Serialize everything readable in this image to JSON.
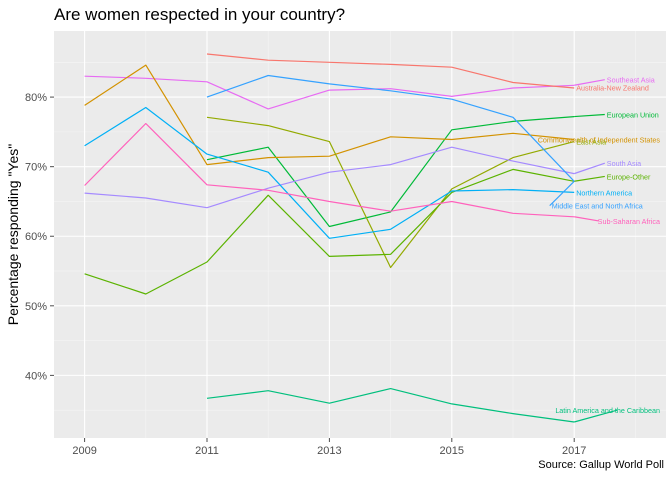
{
  "chart": {
    "title": "Are women respected in your country?",
    "caption": "Source: Gallup World Poll"
  },
  "chart_data": {
    "type": "line",
    "title": "Are women respected in your country?",
    "xlabel": "",
    "ylabel": "Percentage responding \"Yes\"",
    "xlim": [
      2008.5,
      2018.5
    ],
    "ylim": [
      31.0,
      89.5
    ],
    "x_ticks": [
      2009,
      2011,
      2013,
      2015,
      2017
    ],
    "y_ticks": [
      40,
      50,
      60,
      70,
      80
    ],
    "y_tick_labels": [
      "40%",
      "50%",
      "60%",
      "70%",
      "80%"
    ],
    "grid": true,
    "legend": "direct-labels-right",
    "series": [
      {
        "name": "Southeast Asia",
        "color": "#E76BF3",
        "x": [
          2009,
          2010,
          2011,
          2012,
          2013,
          2014,
          2015,
          2016,
          2017
        ],
        "values": [
          83.0,
          82.7,
          82.2,
          78.3,
          81.0,
          81.2,
          80.1,
          81.3,
          81.7
        ],
        "label_end": [
          2017.5,
          82.5
        ]
      },
      {
        "name": "Australia-New Zealand",
        "color": "#F8766D",
        "x": [
          2011,
          2012,
          2013,
          2014,
          2015,
          2016,
          2017
        ],
        "values": [
          86.2,
          85.3,
          85.0,
          84.7,
          84.3,
          82.1,
          81.3
        ],
        "label_end": [
          2017,
          81.4
        ]
      },
      {
        "name": "European Union",
        "color": "#00BA38",
        "x": [
          2011,
          2012,
          2013,
          2014,
          2015,
          2016,
          2017
        ],
        "values": [
          71.0,
          72.8,
          61.4,
          63.5,
          75.3,
          76.5,
          77.2
        ],
        "label_end": [
          2017.5,
          77.5
        ]
      },
      {
        "name": "Commonwealth of Independent States",
        "color": "#D39200",
        "x": [
          2009,
          2010,
          2011,
          2012,
          2013,
          2014,
          2015,
          2016,
          2017
        ],
        "values": [
          78.8,
          84.6,
          70.3,
          71.3,
          71.5,
          74.3,
          73.9,
          74.8,
          73.9
        ],
        "label_end": [
          2017,
          73.9
        ]
      },
      {
        "name": "East Asia",
        "color": "#93AA00",
        "x": [
          2011,
          2012,
          2013,
          2014,
          2015,
          2016,
          2017
        ],
        "values": [
          77.1,
          75.9,
          73.6,
          55.5,
          66.8,
          71.3,
          73.6
        ],
        "label_end": [
          2017,
          73.6
        ]
      },
      {
        "name": "South Asia",
        "color": "#A58AFF",
        "x": [
          2009,
          2010,
          2011,
          2012,
          2013,
          2014,
          2015,
          2016,
          2017
        ],
        "values": [
          66.2,
          65.5,
          64.1,
          66.9,
          69.2,
          70.3,
          72.8,
          70.8,
          69.0
        ],
        "label_end": [
          2017.5,
          70.5
        ]
      },
      {
        "name": "Europe-Other",
        "color": "#5BB300",
        "x": [
          2009,
          2010,
          2011,
          2012,
          2013,
          2014,
          2015,
          2016,
          2017
        ],
        "values": [
          54.6,
          51.7,
          56.3,
          65.9,
          57.1,
          57.4,
          66.3,
          69.6,
          67.9
        ],
        "label_end": [
          2017.5,
          68.6
        ]
      },
      {
        "name": "Northern America",
        "color": "#00B0F6",
        "x": [
          2009,
          2010,
          2011,
          2012,
          2013,
          2014,
          2015,
          2016,
          2017
        ],
        "values": [
          73.0,
          78.5,
          71.8,
          69.2,
          59.7,
          61.0,
          66.5,
          66.7,
          66.3
        ],
        "label_end": [
          2017,
          66.3
        ]
      },
      {
        "name": "Middle East and North Africa",
        "color": "#35A2FF",
        "x": [
          2011,
          2012,
          2013,
          2014,
          2015,
          2016,
          2017
        ],
        "values": [
          80.0,
          83.1,
          81.9,
          80.9,
          79.7,
          77.1,
          67.9
        ],
        "label_end": [
          2016.6,
          64.4
        ]
      },
      {
        "name": "Sub-Saharan Africa",
        "color": "#FF62BC",
        "x": [
          2009,
          2010,
          2011,
          2012,
          2013,
          2014,
          2015,
          2016,
          2017
        ],
        "values": [
          67.3,
          76.2,
          67.4,
          66.6,
          65.0,
          63.6,
          65.0,
          63.3,
          62.8
        ],
        "label_end": [
          2017.4,
          62.2
        ]
      },
      {
        "name": "Latin America and the Caribbean",
        "color": "#00BF7D",
        "x": [
          2011,
          2012,
          2013,
          2014,
          2015,
          2016,
          2017
        ],
        "values": [
          36.7,
          37.8,
          36.0,
          38.1,
          35.9,
          34.5,
          33.3
        ],
        "label_end": [
          2017.7,
          35.0
        ]
      },
      {
        "name": "(unlabelled)",
        "color": "#00A9FF",
        "x": [
          2009,
          2010,
          2011
        ],
        "values": [
          73.0,
          78.5,
          71.8
        ],
        "hidden_label": true
      }
    ],
    "caption": "Source: Gallup World Poll"
  },
  "theme": {
    "panel_bg": "#EBEBEB",
    "grid_major": "#FFFFFF",
    "grid_minor": "#F5F5F5",
    "axis_text": "#4D4D4D"
  }
}
